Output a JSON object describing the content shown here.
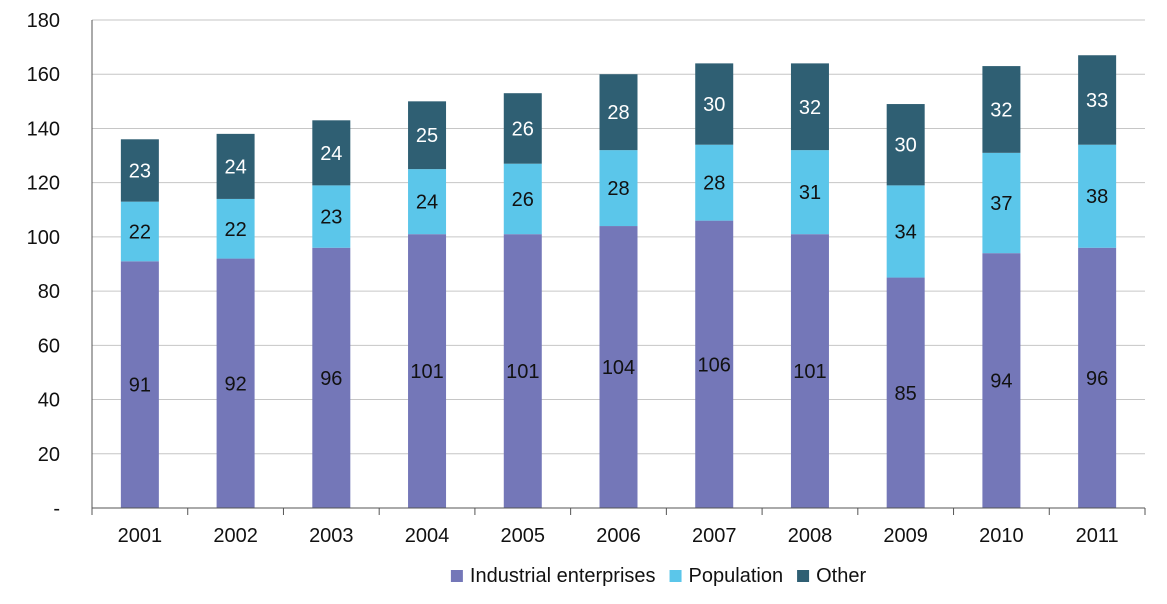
{
  "chart_data": {
    "type": "bar",
    "stacked": true,
    "title": "",
    "xlabel": "",
    "ylabel": "",
    "categories": [
      "2001",
      "2002",
      "2003",
      "2004",
      "2005",
      "2006",
      "2007",
      "2008",
      "2009",
      "2010",
      "2011"
    ],
    "series": [
      {
        "name": "Industrial enterprises",
        "color": "#7477b8",
        "values": [
          91,
          92,
          96,
          101,
          101,
          104,
          106,
          101,
          85,
          94,
          96
        ]
      },
      {
        "name": "Population",
        "color": "#5bc6ea",
        "values": [
          22,
          22,
          23,
          24,
          26,
          28,
          28,
          31,
          34,
          37,
          38
        ]
      },
      {
        "name": "Other",
        "color": "#2f5f73",
        "values": [
          23,
          24,
          24,
          25,
          26,
          28,
          30,
          32,
          30,
          32,
          33
        ]
      }
    ],
    "ylim": [
      0,
      180
    ],
    "yticks": [
      0,
      20,
      40,
      60,
      80,
      100,
      120,
      140,
      160,
      180
    ],
    "ytick_labels": [
      "-",
      "20",
      "40",
      "60",
      "80",
      "100",
      "120",
      "140",
      "160",
      "180"
    ],
    "grid": true,
    "legend_position": "bottom",
    "data_label_colors": {
      "Industrial enterprises": "#111111",
      "Population": "#111111",
      "Other": "#ffffff"
    },
    "gridline_color": "#c6c6c6",
    "axis_color": "#555555"
  }
}
